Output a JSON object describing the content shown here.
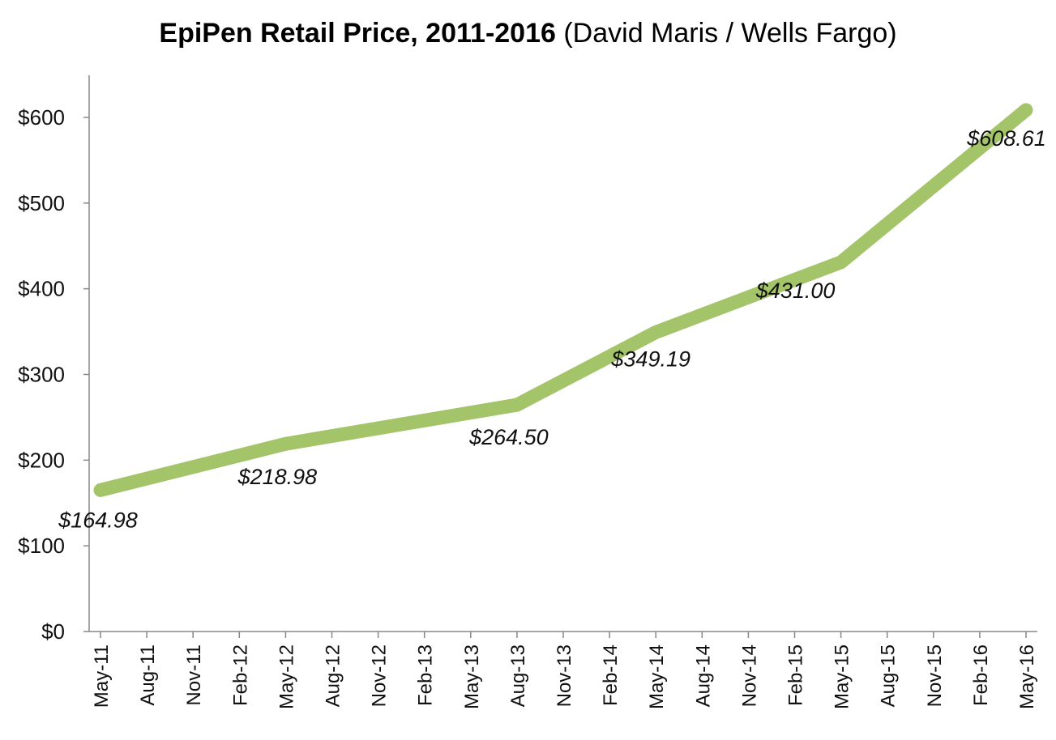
{
  "chart_data": {
    "type": "line",
    "title": "EpiPen Retail Price, 2011-2016",
    "subtitle": "(David Maris / Wells Fargo)",
    "xlabel": "",
    "ylabel": "",
    "categories": [
      "May-11",
      "Aug-11",
      "Nov-11",
      "Feb-12",
      "May-12",
      "Aug-12",
      "Nov-12",
      "Feb-13",
      "May-13",
      "Aug-13",
      "Nov-13",
      "Feb-14",
      "May-14",
      "Aug-14",
      "Nov-14",
      "Feb-15",
      "May-15",
      "Aug-15",
      "Nov-15",
      "Feb-16",
      "May-16"
    ],
    "series": [
      {
        "name": "EpiPen Retail Price",
        "color": "#a4c46a",
        "points": [
          {
            "x": "May-11",
            "y": 164.98,
            "label": "$164.98"
          },
          {
            "x": "May-12",
            "y": 218.98,
            "label": "$218.98"
          },
          {
            "x": "Aug-13",
            "y": 264.5,
            "label": "$264.50"
          },
          {
            "x": "May-14",
            "y": 349.19,
            "label": "$349.19"
          },
          {
            "x": "May-15",
            "y": 431.0,
            "label": "$431.00"
          },
          {
            "x": "May-16",
            "y": 608.61,
            "label": "$608.61"
          }
        ]
      }
    ],
    "ylim": [
      0,
      650
    ],
    "yticks": [
      0,
      100,
      200,
      300,
      400,
      500,
      600
    ],
    "ytick_labels": [
      "$0",
      "$100",
      "$200",
      "$300",
      "$400",
      "$500",
      "$600"
    ],
    "grid": false,
    "legend": "none"
  }
}
